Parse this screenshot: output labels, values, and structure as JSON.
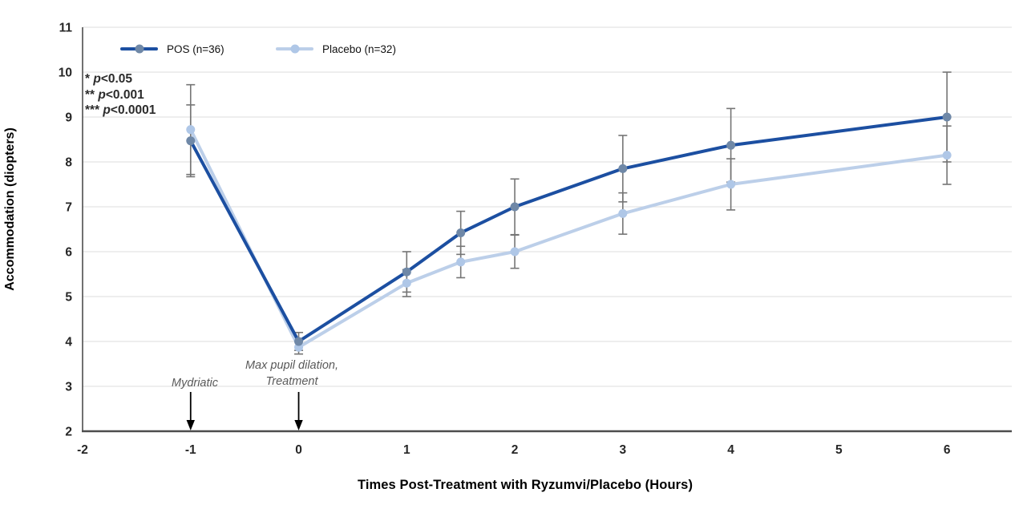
{
  "chart_data": {
    "type": "line",
    "title": "",
    "xlabel": "Times Post-Treatment with Ryzumvi/Placebo (Hours)",
    "ylabel": "Accommodation (diopters)",
    "xlim": [
      -2,
      6.6
    ],
    "ylim": [
      2,
      11
    ],
    "x_ticks": [
      -2,
      -1,
      0,
      1,
      2,
      3,
      4,
      5,
      6
    ],
    "y_ticks": [
      2,
      3,
      4,
      5,
      6,
      7,
      8,
      9,
      10,
      11
    ],
    "grid": "horizontal-only",
    "legend_position": "top-inside",
    "x": [
      -1,
      0,
      1,
      1.5,
      2,
      3,
      4,
      6
    ],
    "series": [
      {
        "name": "POS (n=36)",
        "line_color": "#1C4FA1",
        "marker_color": "#6F88A7",
        "values": [
          8.47,
          4.0,
          5.55,
          6.42,
          7.0,
          7.85,
          8.37,
          9.0
        ],
        "errors": [
          0.8,
          0.2,
          0.45,
          0.48,
          0.62,
          0.74,
          0.82,
          1.0
        ]
      },
      {
        "name": "Placebo (n=32)",
        "line_color": "#BCCFE9",
        "marker_color": "#AFC7E7",
        "values": [
          8.72,
          3.87,
          5.3,
          5.77,
          6.0,
          6.85,
          7.5,
          8.15
        ],
        "errors": [
          1.0,
          0.15,
          0.3,
          0.35,
          0.37,
          0.46,
          0.57,
          0.65
        ]
      }
    ],
    "error_bar_color": "#757575",
    "significance_notes": [
      {
        "stars": "*",
        "p": "p",
        "threshold": "<0.05"
      },
      {
        "stars": "**",
        "p": "p",
        "threshold": "<0.001"
      },
      {
        "stars": "***",
        "p": "p",
        "threshold": "<0.0001"
      }
    ],
    "event_arrows": [
      {
        "x": -1,
        "label": "Mydriatic"
      },
      {
        "x": 0,
        "label": "Max pupil dilation,\nTreatment"
      }
    ]
  },
  "colors": {
    "grid": "#E3E3E3",
    "axis": "#4D4D4D",
    "arrow": "#000000"
  }
}
